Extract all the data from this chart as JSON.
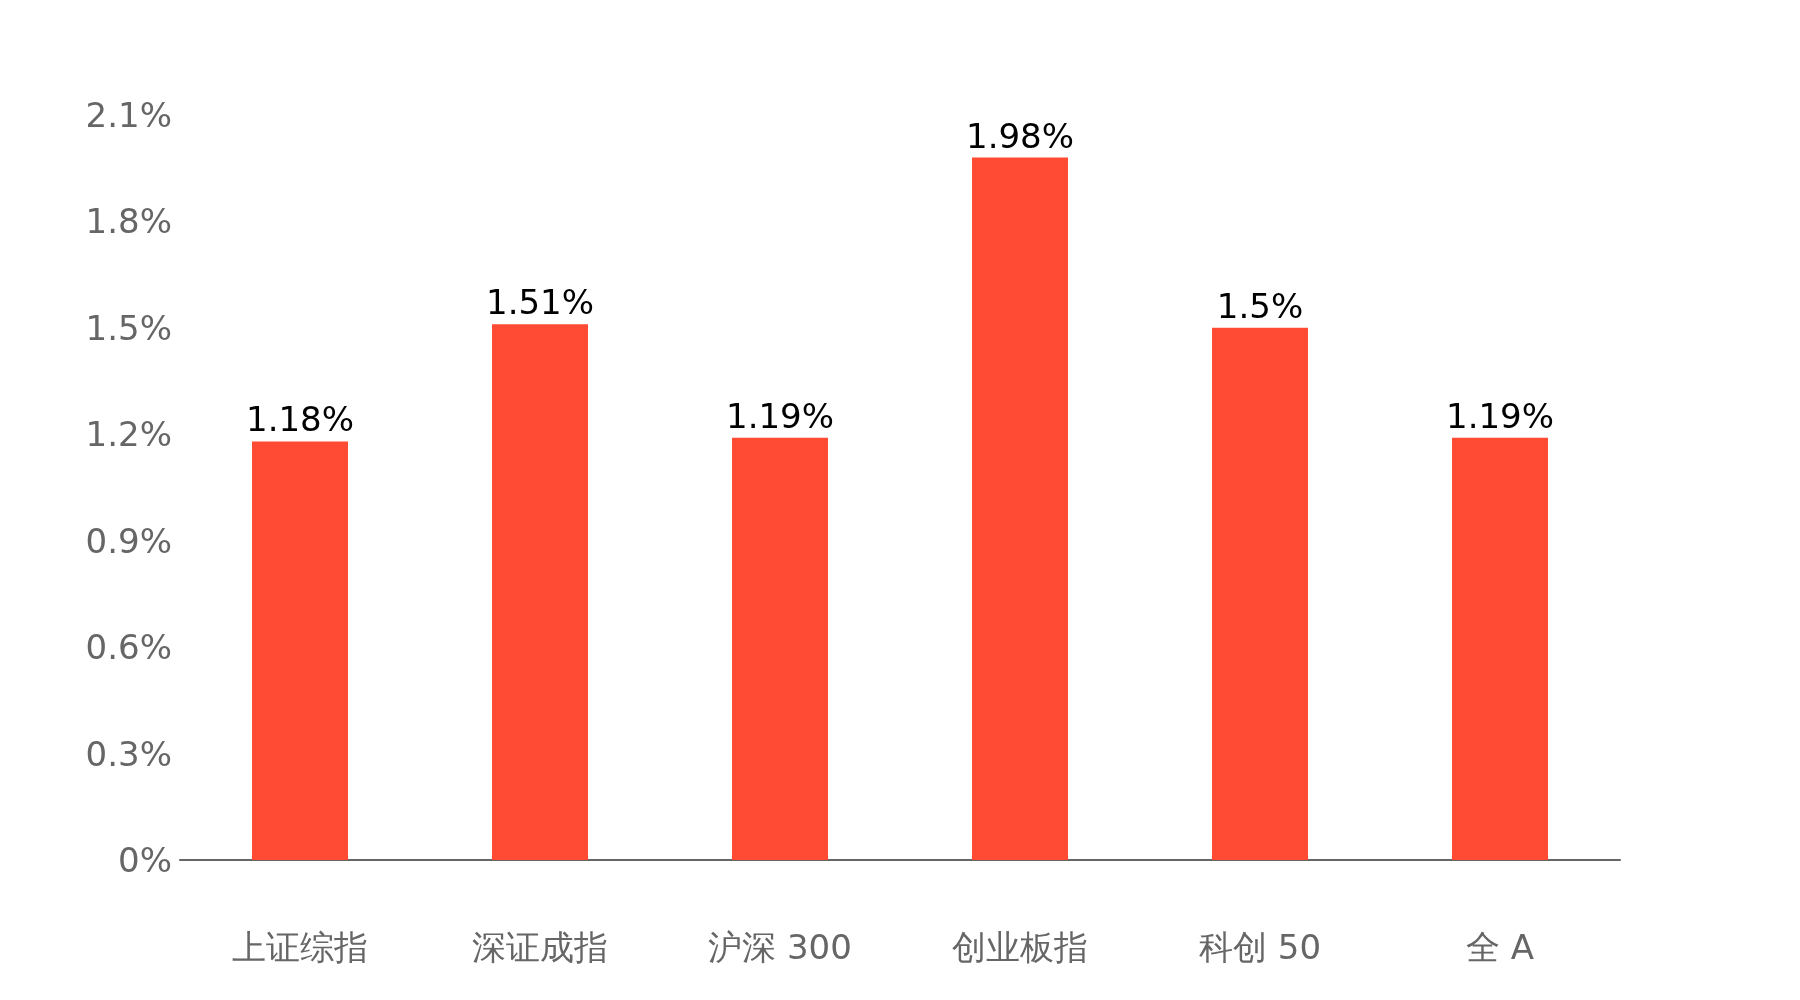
{
  "chart_data": {
    "type": "bar",
    "categories": [
      "上证综指",
      "深证成指",
      "沪深 300",
      "创业板指",
      "科创 50",
      "全 A"
    ],
    "values": [
      1.18,
      1.51,
      1.19,
      1.98,
      1.5,
      1.19
    ],
    "value_labels": [
      "1.18%",
      "1.51%",
      "1.19%",
      "1.98%",
      "1.5%",
      "1.19%"
    ],
    "color": "#ff4b33",
    "ylim": [
      0,
      2.1
    ],
    "yticks": [
      {
        "value": 0,
        "label": "0%"
      },
      {
        "value": 0.3,
        "label": "0.3%"
      },
      {
        "value": 0.6,
        "label": "0.6%"
      },
      {
        "value": 0.9,
        "label": "0.9%"
      },
      {
        "value": 1.2,
        "label": "1.2%"
      },
      {
        "value": 1.5,
        "label": "1.5%"
      },
      {
        "value": 1.8,
        "label": "1.8%"
      },
      {
        "value": 2.1,
        "label": "2.1%"
      }
    ],
    "grid": false
  }
}
